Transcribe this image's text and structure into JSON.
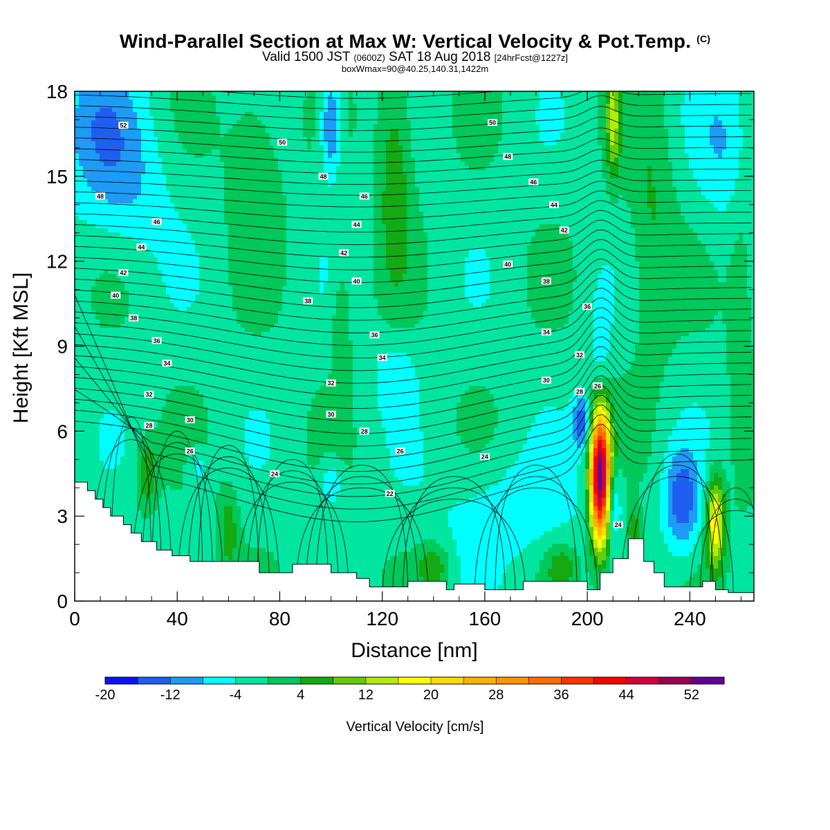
{
  "header": {
    "title": "Wind-Parallel Section at Max W: Vertical Velocity & Pot.Temp.",
    "copyright": "(C)",
    "valid_prefix": "Valid 1500 JST",
    "valid_utc": "(0600Z)",
    "valid_date": "SAT 18 Aug 2018",
    "forecast": "[24hrFcst@1227z]",
    "box_info": "boxWmax=90@40.25,140.31,1422m"
  },
  "chart_data": {
    "type": "heatmap",
    "xlabel": "Distance [nm]",
    "ylabel": "Height [Kft MSL]",
    "xlim": [
      0,
      265
    ],
    "ylim": [
      0,
      18
    ],
    "x_ticks": [
      0,
      40,
      80,
      120,
      160,
      200,
      240
    ],
    "y_ticks": [
      0,
      3,
      6,
      9,
      12,
      15,
      18
    ],
    "colorbar": {
      "title": "Vertical Velocity [cm/s]",
      "levels": [
        -20,
        -16,
        -12,
        -8,
        -4,
        0,
        4,
        8,
        12,
        16,
        20,
        24,
        28,
        32,
        36,
        40,
        44,
        48,
        52,
        56
      ],
      "tick_labels": [
        "-20",
        "-12",
        "-4",
        "4",
        "12",
        "20",
        "28",
        "36",
        "44",
        "52"
      ],
      "colors": [
        "#0a14f5",
        "#1f5ff0",
        "#1e9bf5",
        "#00ffff",
        "#00e6a0",
        "#00c85a",
        "#14aa14",
        "#64cd0a",
        "#b4eb0a",
        "#ffff00",
        "#ffdc00",
        "#ffb400",
        "#ff9600",
        "#ff6e00",
        "#ff3200",
        "#ff0000",
        "#d2003c",
        "#9b0050",
        "#640096"
      ]
    },
    "terrain": {
      "distance_nm": [
        0,
        5,
        8,
        11,
        14,
        19,
        22,
        26,
        32,
        38,
        45,
        72,
        85,
        100,
        110,
        115,
        130,
        145,
        148,
        160,
        175,
        200,
        205,
        210,
        216,
        222,
        226,
        230,
        245,
        250,
        255,
        265
      ],
      "height_kft": [
        4.2,
        3.9,
        3.6,
        3.3,
        3.0,
        2.7,
        2.4,
        2.1,
        1.8,
        1.6,
        1.4,
        1.0,
        1.3,
        1.0,
        0.8,
        0.5,
        0.7,
        0.4,
        0.6,
        0.4,
        0.7,
        0.4,
        1.0,
        1.5,
        2.2,
        1.4,
        1.0,
        0.5,
        0.7,
        0.4,
        0.3,
        0.3
      ]
    },
    "potential_temperature_labels": [
      {
        "value": "52",
        "x": 19,
        "y": 16.8
      },
      {
        "value": "50",
        "x": 81,
        "y": 16.2
      },
      {
        "value": "50",
        "x": 163,
        "y": 16.9
      },
      {
        "value": "48",
        "x": 97,
        "y": 15.0
      },
      {
        "value": "48",
        "x": 169,
        "y": 15.7
      },
      {
        "value": "48",
        "x": 10,
        "y": 14.3
      },
      {
        "value": "46",
        "x": 113,
        "y": 14.3
      },
      {
        "value": "46",
        "x": 179,
        "y": 14.8
      },
      {
        "value": "46",
        "x": 32,
        "y": 13.4
      },
      {
        "value": "44",
        "x": 110,
        "y": 13.3
      },
      {
        "value": "44",
        "x": 187,
        "y": 14.0
      },
      {
        "value": "44",
        "x": 26,
        "y": 12.5
      },
      {
        "value": "42",
        "x": 105,
        "y": 12.3
      },
      {
        "value": "42",
        "x": 191,
        "y": 13.1
      },
      {
        "value": "42",
        "x": 19,
        "y": 11.6
      },
      {
        "value": "40",
        "x": 110,
        "y": 11.3
      },
      {
        "value": "40",
        "x": 169,
        "y": 11.9
      },
      {
        "value": "40",
        "x": 16,
        "y": 10.8
      },
      {
        "value": "38",
        "x": 91,
        "y": 10.6
      },
      {
        "value": "38",
        "x": 184,
        "y": 11.3
      },
      {
        "value": "38",
        "x": 23,
        "y": 10.0
      },
      {
        "value": "36",
        "x": 117,
        "y": 9.4
      },
      {
        "value": "36",
        "x": 200,
        "y": 10.4
      },
      {
        "value": "36",
        "x": 32,
        "y": 9.2
      },
      {
        "value": "34",
        "x": 120,
        "y": 8.6
      },
      {
        "value": "34",
        "x": 184,
        "y": 9.5
      },
      {
        "value": "34",
        "x": 36,
        "y": 8.4
      },
      {
        "value": "32",
        "x": 100,
        "y": 7.7
      },
      {
        "value": "32",
        "x": 197,
        "y": 8.7
      },
      {
        "value": "32",
        "x": 29,
        "y": 7.3
      },
      {
        "value": "30",
        "x": 100,
        "y": 6.6
      },
      {
        "value": "30",
        "x": 184,
        "y": 7.8
      },
      {
        "value": "30",
        "x": 45,
        "y": 6.4
      },
      {
        "value": "28",
        "x": 113,
        "y": 6.0
      },
      {
        "value": "28",
        "x": 197,
        "y": 7.4
      },
      {
        "value": "28",
        "x": 29,
        "y": 6.2
      },
      {
        "value": "26",
        "x": 127,
        "y": 5.3
      },
      {
        "value": "26",
        "x": 45,
        "y": 5.3
      },
      {
        "value": "26",
        "x": 204,
        "y": 7.6
      },
      {
        "value": "24",
        "x": 78,
        "y": 4.5
      },
      {
        "value": "24",
        "x": 160,
        "y": 5.1
      },
      {
        "value": "24",
        "x": 212,
        "y": 2.7
      },
      {
        "value": "22",
        "x": 123,
        "y": 3.8
      }
    ]
  }
}
